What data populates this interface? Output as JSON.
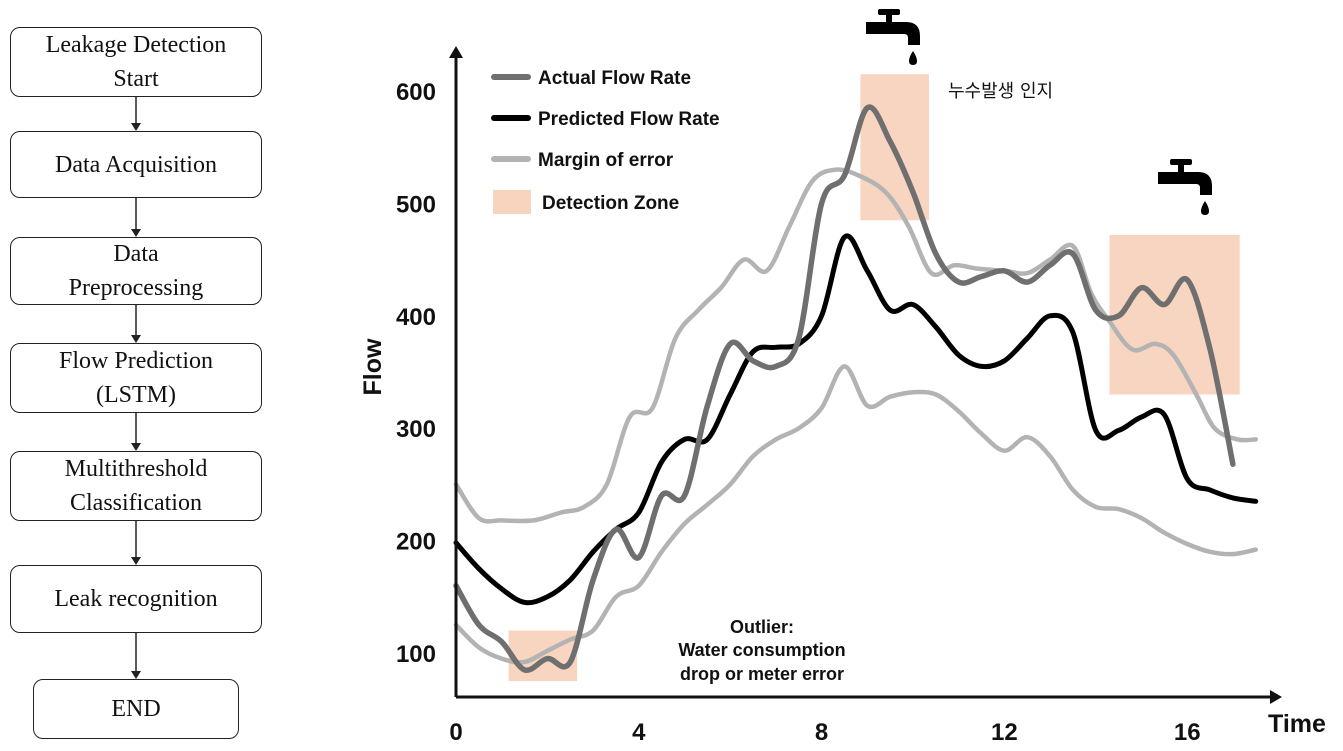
{
  "flowchart": {
    "steps": [
      {
        "lines": [
          "Leakage  Detection",
          "Start"
        ]
      },
      {
        "lines": [
          "Data Acquisition"
        ]
      },
      {
        "lines": [
          "Data",
          "Preprocessing"
        ]
      },
      {
        "lines": [
          "Flow Prediction",
          "(LSTM)"
        ]
      },
      {
        "lines": [
          "Multithreshold",
          "Classification"
        ]
      },
      {
        "lines": [
          "Leak recognition"
        ]
      },
      {
        "lines": [
          "END"
        ]
      }
    ]
  },
  "chart_data": {
    "type": "line",
    "xlabel": "Time",
    "ylabel": "Flow",
    "xlim": [
      0,
      17.5
    ],
    "ylim": [
      40,
      640
    ],
    "x_ticks": [
      0,
      4,
      8,
      12,
      16
    ],
    "y_ticks": [
      100,
      200,
      300,
      400,
      500,
      600
    ],
    "legend_position": "top-left",
    "legend": [
      {
        "label": "Actual Flow Rate",
        "kind": "line",
        "color": "#6f6f6f"
      },
      {
        "label": "Predicted Flow Rate",
        "kind": "line",
        "color": "#000000"
      },
      {
        "label": "Margin of error",
        "kind": "line",
        "color": "#b3b3b3"
      },
      {
        "label": "Detection Zone",
        "kind": "box",
        "color": "#f8d3bd"
      }
    ],
    "series": [
      {
        "name": "Margin of error",
        "color": "#b3b3b3",
        "width": 4.5,
        "points": [
          [
            0,
            250
          ],
          [
            0.5,
            220
          ],
          [
            1,
            218
          ],
          [
            1.7,
            218
          ],
          [
            2.3,
            225
          ],
          [
            2.8,
            230
          ],
          [
            3.3,
            250
          ],
          [
            3.8,
            310
          ],
          [
            4.3,
            318
          ],
          [
            4.8,
            380
          ],
          [
            5.3,
            405
          ],
          [
            5.8,
            425
          ],
          [
            6.3,
            450
          ],
          [
            6.8,
            440
          ],
          [
            7.3,
            480
          ],
          [
            7.8,
            520
          ],
          [
            8.3,
            530
          ],
          [
            8.8,
            525
          ],
          [
            9.4,
            510
          ],
          [
            9.9,
            480
          ],
          [
            10.4,
            438
          ],
          [
            10.9,
            445
          ],
          [
            11.4,
            442
          ],
          [
            12,
            440
          ],
          [
            12.5,
            438
          ],
          [
            13,
            450
          ],
          [
            13.5,
            462
          ],
          [
            13.9,
            420
          ],
          [
            14.3,
            395
          ],
          [
            14.8,
            370
          ],
          [
            15.3,
            375
          ],
          [
            15.7,
            365
          ],
          [
            16.2,
            330
          ],
          [
            16.6,
            300
          ],
          [
            17.1,
            290
          ],
          [
            17.5,
            290
          ]
        ]
      },
      {
        "name": "Margin of error",
        "color": "#b3b3b3",
        "width": 4.5,
        "points": [
          [
            0,
            125
          ],
          [
            0.5,
            105
          ],
          [
            1,
            95
          ],
          [
            1.5,
            92
          ],
          [
            2,
            102
          ],
          [
            2.5,
            112
          ],
          [
            3,
            120
          ],
          [
            3.5,
            150
          ],
          [
            4,
            160
          ],
          [
            4.5,
            190
          ],
          [
            5,
            215
          ],
          [
            5.5,
            232
          ],
          [
            6,
            250
          ],
          [
            6.5,
            275
          ],
          [
            7,
            290
          ],
          [
            7.5,
            300
          ],
          [
            8,
            318
          ],
          [
            8.5,
            355
          ],
          [
            9,
            320
          ],
          [
            9.5,
            328
          ],
          [
            10,
            332
          ],
          [
            10.5,
            330
          ],
          [
            11,
            315
          ],
          [
            11.5,
            295
          ],
          [
            12,
            280
          ],
          [
            12.5,
            292
          ],
          [
            13,
            275
          ],
          [
            13.5,
            245
          ],
          [
            14,
            230
          ],
          [
            14.5,
            228
          ],
          [
            15,
            220
          ],
          [
            15.5,
            207
          ],
          [
            16,
            197
          ],
          [
            16.5,
            190
          ],
          [
            17,
            188
          ],
          [
            17.5,
            192
          ]
        ]
      },
      {
        "name": "Predicted Flow Rate",
        "color": "#000000",
        "width": 5,
        "points": [
          [
            0,
            198
          ],
          [
            0.5,
            175
          ],
          [
            1,
            157
          ],
          [
            1.5,
            145
          ],
          [
            2,
            150
          ],
          [
            2.5,
            165
          ],
          [
            3,
            190
          ],
          [
            3.5,
            210
          ],
          [
            4,
            225
          ],
          [
            4.5,
            270
          ],
          [
            5,
            290
          ],
          [
            5.5,
            290
          ],
          [
            6,
            330
          ],
          [
            6.5,
            368
          ],
          [
            7,
            372
          ],
          [
            7.5,
            375
          ],
          [
            8,
            400
          ],
          [
            8.5,
            470
          ],
          [
            9,
            440
          ],
          [
            9.5,
            405
          ],
          [
            10,
            410
          ],
          [
            10.5,
            390
          ],
          [
            11,
            365
          ],
          [
            11.5,
            355
          ],
          [
            12,
            360
          ],
          [
            12.5,
            380
          ],
          [
            13,
            400
          ],
          [
            13.5,
            385
          ],
          [
            14,
            298
          ],
          [
            14.5,
            298
          ],
          [
            15,
            310
          ],
          [
            15.5,
            312
          ],
          [
            16,
            255
          ],
          [
            16.5,
            245
          ],
          [
            17,
            238
          ],
          [
            17.5,
            235
          ]
        ]
      },
      {
        "name": "Actual Flow Rate",
        "color": "#6f6f6f",
        "width": 5.5,
        "points": [
          [
            0,
            160
          ],
          [
            0.5,
            125
          ],
          [
            1,
            110
          ],
          [
            1.5,
            85
          ],
          [
            2,
            95
          ],
          [
            2.5,
            92
          ],
          [
            3,
            165
          ],
          [
            3.5,
            210
          ],
          [
            4,
            185
          ],
          [
            4.5,
            240
          ],
          [
            5,
            240
          ],
          [
            5.5,
            320
          ],
          [
            6,
            375
          ],
          [
            6.5,
            360
          ],
          [
            7,
            355
          ],
          [
            7.5,
            380
          ],
          [
            8,
            500
          ],
          [
            8.5,
            525
          ],
          [
            9,
            585
          ],
          [
            9.5,
            555
          ],
          [
            10,
            510
          ],
          [
            10.5,
            455
          ],
          [
            11,
            430
          ],
          [
            11.5,
            435
          ],
          [
            12,
            440
          ],
          [
            12.5,
            430
          ],
          [
            13,
            445
          ],
          [
            13.5,
            455
          ],
          [
            14,
            405
          ],
          [
            14.5,
            400
          ],
          [
            15,
            425
          ],
          [
            15.5,
            410
          ],
          [
            16,
            432
          ],
          [
            16.5,
            370
          ],
          [
            17,
            268
          ]
        ]
      }
    ],
    "detection_zones": [
      {
        "x": [
          1.15,
          2.65
        ],
        "y": [
          75,
          120
        ]
      },
      {
        "x": [
          8.85,
          10.35
        ],
        "y": [
          485,
          615
        ]
      },
      {
        "x": [
          14.3,
          17.15
        ],
        "y": [
          330,
          472
        ]
      }
    ],
    "annotations": [
      {
        "lines": [
          "Outlier:",
          "Water consumption",
          "drop or meter error"
        ]
      },
      {
        "lines": [
          "누수발생 인지"
        ]
      }
    ],
    "icons": [
      "faucet-icon",
      "faucet-icon"
    ]
  }
}
